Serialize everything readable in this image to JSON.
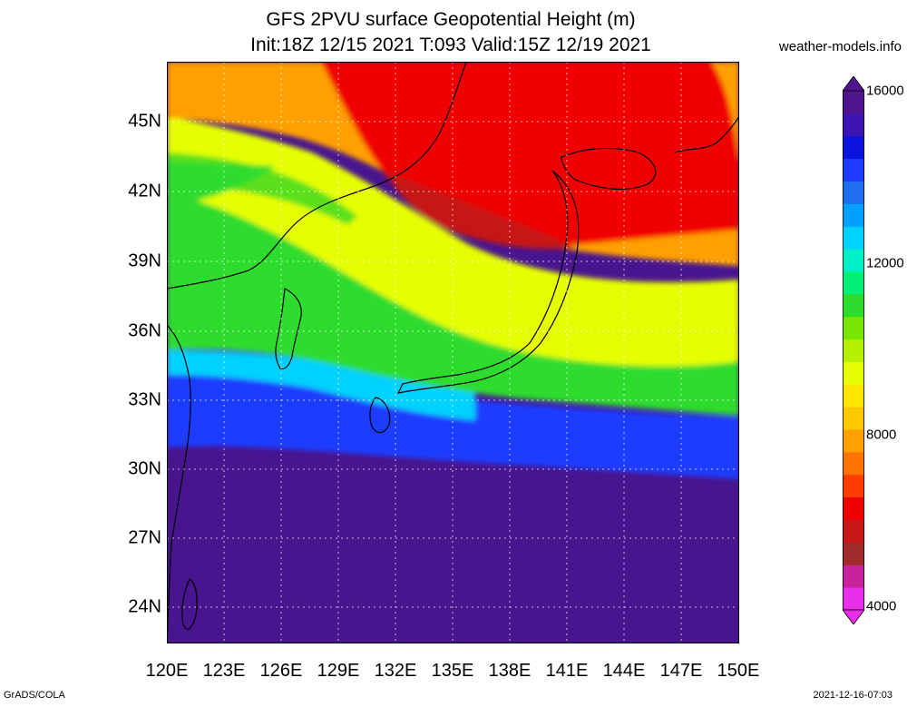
{
  "title": {
    "line1": "GFS 2PVU surface Geopotential Height (m)",
    "line2": "Init:18Z 12/15 2021 T:093 Valid:15Z 12/19 2021"
  },
  "credit": "weather-models.info",
  "axes": {
    "lat_labels": [
      "45N",
      "42N",
      "39N",
      "36N",
      "33N",
      "30N",
      "27N",
      "24N"
    ],
    "lon_labels": [
      "120E",
      "123E",
      "126E",
      "129E",
      "132E",
      "135E",
      "138E",
      "141E",
      "144E",
      "147E",
      "150E"
    ]
  },
  "colorbar": {
    "labels": [
      "16000",
      "12000",
      "8000",
      "4000"
    ],
    "colors": [
      "#e82ee8",
      "#c8239b",
      "#a02b2b",
      "#c61818",
      "#f00000",
      "#ff3c00",
      "#ff7300",
      "#ffa000",
      "#ffc800",
      "#ffe600",
      "#e6ff00",
      "#b4f000",
      "#78e600",
      "#2ddc2d",
      "#00f078",
      "#00f0c8",
      "#00d2ff",
      "#00a0ff",
      "#1e6ef0",
      "#1e3cff",
      "#0a14dc",
      "#3c14b4",
      "#50148c"
    ]
  },
  "map_colors": {
    "deep_purple": "#48158f",
    "blue": "#1e3cff",
    "cyan": "#00d2ff",
    "green": "#2ddc2d",
    "yellow": "#e6ff00",
    "orange": "#ffa000",
    "red": "#f00000",
    "dark_red": "#c61818"
  },
  "footer": {
    "left": "GrADS/COLA",
    "right": "2021-12-16-07:03"
  }
}
